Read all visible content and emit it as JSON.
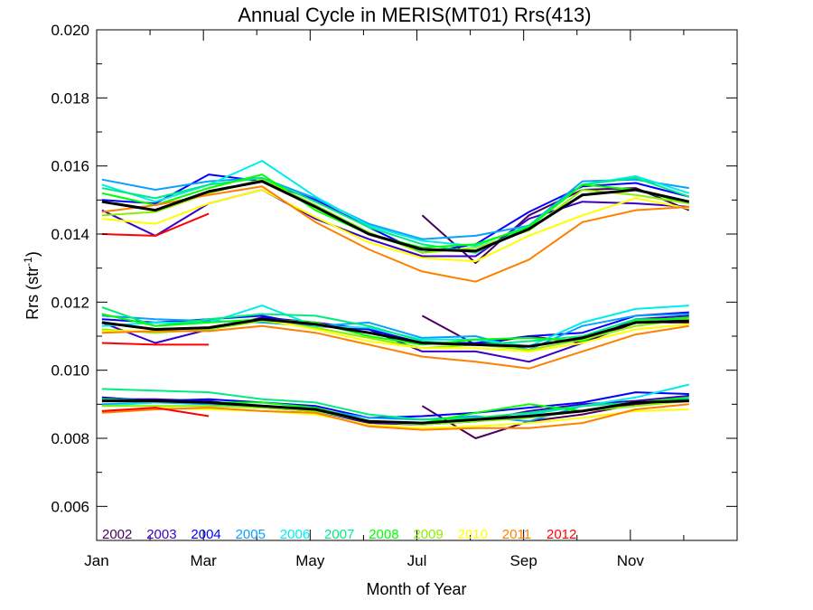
{
  "chart_data": {
    "type": "line",
    "title": "Annual Cycle in MERIS(MT01) Rrs(413)",
    "xlabel": "Month of Year",
    "ylabel": "Rrs (str",
    "ylabel_sup": "-1",
    "ylabel_close": ")",
    "xlim": [
      1,
      13
    ],
    "ylim": [
      0.005,
      0.02
    ],
    "xticks": [
      {
        "value": 1,
        "label": "Jan"
      },
      {
        "value": 3,
        "label": "Mar"
      },
      {
        "value": 5,
        "label": "May"
      },
      {
        "value": 7,
        "label": "Jul"
      },
      {
        "value": 9,
        "label": "Sep"
      },
      {
        "value": 11,
        "label": "Nov"
      }
    ],
    "yticks": [
      {
        "value": 0.006,
        "label": "0.006"
      },
      {
        "value": 0.008,
        "label": "0.008"
      },
      {
        "value": 0.01,
        "label": "0.010"
      },
      {
        "value": 0.012,
        "label": "0.012"
      },
      {
        "value": 0.014,
        "label": "0.014"
      },
      {
        "value": 0.016,
        "label": "0.016"
      },
      {
        "value": 0.018,
        "label": "0.018"
      },
      {
        "value": 0.02,
        "label": "0.020"
      }
    ],
    "grid": false,
    "legend_position": "bottom-left",
    "x_months": [
      1.1,
      2.1,
      3.1,
      4.1,
      5.1,
      6.1,
      7.1,
      8.1,
      9.1,
      10.1,
      11.1,
      12.1
    ],
    "series": [
      {
        "name": "2002",
        "color": "#4b0060",
        "groups": [
          [
            null,
            null,
            null,
            null,
            null,
            null,
            0.01455,
            0.01315,
            0.01455,
            0.0153,
            0.01535,
            0.0147
          ],
          [
            null,
            null,
            null,
            null,
            null,
            null,
            0.0116,
            0.01075,
            0.011,
            0.0108,
            0.0114,
            0.0114
          ],
          [
            null,
            null,
            null,
            null,
            null,
            null,
            0.00895,
            0.008,
            0.0085,
            0.0087,
            0.009,
            0.0091
          ]
        ]
      },
      {
        "name": "2003",
        "color": "#3a00c8",
        "groups": [
          [
            0.0147,
            0.01395,
            0.0149,
            0.0153,
            0.01445,
            0.01385,
            0.01335,
            0.01335,
            0.01445,
            0.01495,
            0.0149,
            0.0148
          ],
          [
            0.0114,
            0.0108,
            0.0112,
            0.01155,
            0.0114,
            0.0112,
            0.01055,
            0.01055,
            0.01025,
            0.0108,
            0.0115,
            0.0116
          ],
          [
            0.00915,
            0.00915,
            0.0091,
            0.0089,
            0.0088,
            0.00845,
            0.0084,
            0.0085,
            0.0088,
            0.009,
            0.0091,
            0.00925
          ]
        ]
      },
      {
        "name": "2004",
        "color": "#0000ff",
        "groups": [
          [
            0.015,
            0.0149,
            0.01575,
            0.01555,
            0.015,
            0.0142,
            0.01345,
            0.0137,
            0.01465,
            0.0154,
            0.0155,
            0.0151
          ],
          [
            0.0115,
            0.0114,
            0.0115,
            0.0116,
            0.0113,
            0.0112,
            0.0108,
            0.0108,
            0.011,
            0.0111,
            0.0116,
            0.0117
          ],
          [
            0.0092,
            0.0091,
            0.00915,
            0.00905,
            0.00895,
            0.0086,
            0.00865,
            0.00875,
            0.0089,
            0.00905,
            0.00935,
            0.0093
          ]
        ]
      },
      {
        "name": "2005",
        "color": "#0aa0ff",
        "groups": [
          [
            0.0156,
            0.0153,
            0.01555,
            0.01565,
            0.01505,
            0.0143,
            0.01385,
            0.01395,
            0.01425,
            0.01555,
            0.0156,
            0.01535
          ],
          [
            0.0116,
            0.0115,
            0.01145,
            0.0114,
            0.0113,
            0.0114,
            0.01095,
            0.011,
            0.0106,
            0.0113,
            0.0116,
            0.01165
          ],
          [
            0.009,
            0.00905,
            0.009,
            0.0089,
            0.00885,
            0.0086,
            0.00855,
            0.00865,
            0.0085,
            0.00895,
            0.00905,
            0.00915
          ]
        ]
      },
      {
        "name": "2006",
        "color": "#00ecec",
        "groups": [
          [
            0.01545,
            0.01495,
            0.01545,
            0.01615,
            0.0151,
            0.01425,
            0.0138,
            0.01365,
            0.01425,
            0.01545,
            0.0157,
            0.0152
          ],
          [
            0.0113,
            0.0114,
            0.0114,
            0.0119,
            0.0113,
            0.01125,
            0.0109,
            0.0109,
            0.0107,
            0.0114,
            0.0118,
            0.0119
          ],
          [
            0.00895,
            0.00905,
            0.00905,
            0.00895,
            0.0088,
            0.0085,
            0.00845,
            0.0085,
            0.0087,
            0.00895,
            0.0092,
            0.00958
          ]
        ]
      },
      {
        "name": "2007",
        "color": "#00ec80",
        "groups": [
          [
            0.01535,
            0.01505,
            0.01545,
            0.01565,
            0.01495,
            0.0142,
            0.0137,
            0.01345,
            0.01425,
            0.01545,
            0.01565,
            0.0151
          ],
          [
            0.01185,
            0.0113,
            0.0115,
            0.01165,
            0.0116,
            0.0113,
            0.01085,
            0.01075,
            0.01085,
            0.011,
            0.0115,
            0.0115
          ],
          [
            0.00945,
            0.0094,
            0.00935,
            0.00915,
            0.00905,
            0.0087,
            0.00855,
            0.0086,
            0.00875,
            0.00895,
            0.00905,
            0.0091
          ]
        ]
      },
      {
        "name": "2008",
        "color": "#00ff00",
        "groups": [
          [
            0.0152,
            0.01485,
            0.01535,
            0.01575,
            0.0147,
            0.014,
            0.0136,
            0.0137,
            0.0142,
            0.01545,
            0.0153,
            0.0149
          ],
          [
            0.01165,
            0.0113,
            0.0114,
            0.0115,
            0.0114,
            0.011,
            0.01075,
            0.0109,
            0.01095,
            0.01085,
            0.01145,
            0.01155
          ],
          [
            0.00915,
            0.0091,
            0.00905,
            0.00905,
            0.0089,
            0.0085,
            0.00845,
            0.00875,
            0.009,
            0.0088,
            0.00905,
            0.0092
          ]
        ]
      },
      {
        "name": "2009",
        "color": "#88f000",
        "groups": [
          [
            0.01455,
            0.01465,
            0.0152,
            0.0156,
            0.01485,
            0.01405,
            0.01345,
            0.0136,
            0.0141,
            0.0153,
            0.01515,
            0.0149
          ],
          [
            0.0112,
            0.0111,
            0.0112,
            0.01145,
            0.01125,
            0.01095,
            0.01065,
            0.01075,
            0.0106,
            0.0109,
            0.0113,
            0.0115
          ],
          [
            0.00895,
            0.00895,
            0.00895,
            0.0089,
            0.0088,
            0.0085,
            0.0084,
            0.0085,
            0.0086,
            0.0088,
            0.00895,
            0.0091
          ]
        ]
      },
      {
        "name": "2010",
        "color": "#ffff00",
        "groups": [
          [
            0.01445,
            0.0143,
            0.0149,
            0.0153,
            0.0145,
            0.01375,
            0.0133,
            0.0132,
            0.01395,
            0.01455,
            0.01505,
            0.01475
          ],
          [
            0.01115,
            0.01115,
            0.01125,
            0.0115,
            0.0112,
            0.01085,
            0.01065,
            0.01065,
            0.01055,
            0.0108,
            0.0112,
            0.01135
          ],
          [
            0.0088,
            0.0089,
            0.00885,
            0.0088,
            0.0087,
            0.0084,
            0.0083,
            0.00835,
            0.00845,
            0.0086,
            0.0088,
            0.00885
          ]
        ]
      },
      {
        "name": "2011",
        "color": "#ff8000",
        "groups": [
          [
            0.01465,
            0.01485,
            0.01515,
            0.0154,
            0.01435,
            0.01355,
            0.0129,
            0.0126,
            0.01325,
            0.01435,
            0.0147,
            0.0148
          ],
          [
            0.0111,
            0.01115,
            0.01115,
            0.0113,
            0.0111,
            0.01075,
            0.0104,
            0.01025,
            0.01005,
            0.01055,
            0.01105,
            0.0113
          ],
          [
            0.00875,
            0.00885,
            0.0089,
            0.0088,
            0.00875,
            0.00835,
            0.00825,
            0.0083,
            0.0083,
            0.00845,
            0.00885,
            0.009
          ]
        ]
      },
      {
        "name": "2012",
        "color": "#ff0000",
        "groups": [
          [
            0.014,
            0.01395,
            0.0146
          ],
          [
            0.0108,
            0.01075,
            0.01075
          ],
          [
            0.0088,
            0.0089,
            0.00865
          ]
        ]
      },
      {
        "name": "",
        "color": "#000000",
        "line_width": 3,
        "groups": [
          [
            0.01495,
            0.0147,
            0.01525,
            0.01555,
            0.0148,
            0.014,
            0.01355,
            0.0135,
            0.01415,
            0.01515,
            0.0153,
            0.01495
          ],
          [
            0.0114,
            0.0112,
            0.01125,
            0.0115,
            0.01135,
            0.0111,
            0.0108,
            0.01075,
            0.0107,
            0.01095,
            0.0114,
            0.01145
          ],
          [
            0.0091,
            0.0091,
            0.00905,
            0.00895,
            0.00885,
            0.0085,
            0.00845,
            0.00855,
            0.00865,
            0.0088,
            0.00905,
            0.0091
          ]
        ]
      }
    ]
  }
}
